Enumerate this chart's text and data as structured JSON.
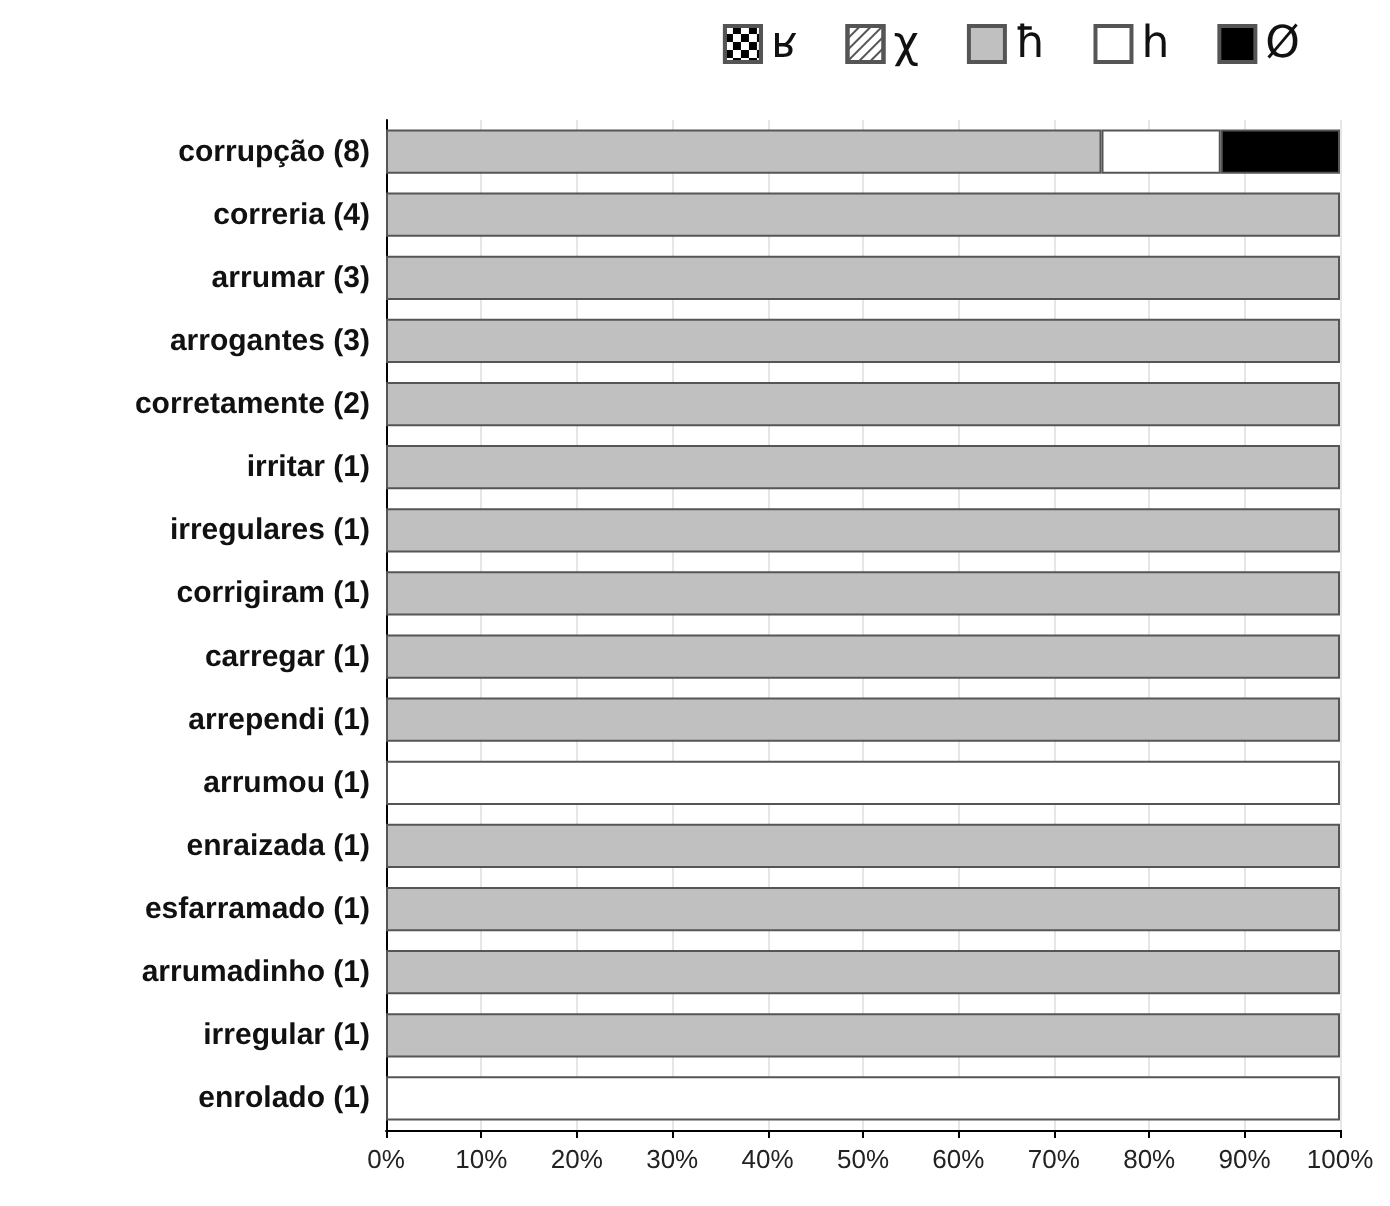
{
  "chart_data": {
    "type": "bar",
    "orientation": "horizontal",
    "stacked": true,
    "legend": "top right",
    "grid": "x",
    "categories": [
      "corrupção (8)",
      "correria (4)",
      "arrumar (3)",
      "arrogantes (3)",
      "corretamente (2)",
      "irritar (1)",
      "irregulares (1)",
      "corrigiram (1)",
      "carregar (1)",
      "arrependi (1)",
      "arrumou (1)",
      "enraizada (1)",
      "esfarramado (1)",
      "arrumadinho (1)",
      "irregular (1)",
      "enrolado (1)"
    ],
    "series": [
      {
        "name": "ʁ",
        "color": "#ffffff",
        "values": [
          0,
          0,
          0,
          0,
          0,
          0,
          0,
          0,
          0,
          0,
          0,
          0,
          0,
          0,
          0,
          0
        ]
      },
      {
        "name": "χ",
        "color": "#ffffff",
        "values": [
          0,
          0,
          0,
          0,
          0,
          0,
          0,
          0,
          0,
          0,
          0,
          0,
          0,
          0,
          0,
          0
        ]
      },
      {
        "name": "ħ",
        "color": "#c0c0c0",
        "values": [
          75,
          100,
          100,
          100,
          100,
          100,
          100,
          100,
          100,
          100,
          0,
          100,
          100,
          100,
          100,
          0
        ]
      },
      {
        "name": "h",
        "color": "#ffffff",
        "values": [
          12.5,
          0,
          0,
          0,
          0,
          0,
          0,
          0,
          0,
          0,
          100,
          0,
          0,
          0,
          0,
          100
        ]
      },
      {
        "name": "Ø",
        "color": "#000000",
        "values": [
          12.5,
          0,
          0,
          0,
          0,
          0,
          0,
          0,
          0,
          0,
          0,
          0,
          0,
          0,
          0,
          0
        ]
      }
    ],
    "xlim": [
      0,
      100
    ],
    "xticks": [
      {
        "value": 0,
        "label": "0%"
      },
      {
        "value": 10,
        "label": "10%"
      },
      {
        "value": 20,
        "label": "20%"
      },
      {
        "value": 30,
        "label": "30%"
      },
      {
        "value": 40,
        "label": "40%"
      },
      {
        "value": 50,
        "label": "50%"
      },
      {
        "value": 60,
        "label": "60%"
      },
      {
        "value": 70,
        "label": "70%"
      },
      {
        "value": 80,
        "label": "80%"
      },
      {
        "value": 90,
        "label": "90%"
      },
      {
        "value": 100,
        "label": "100%"
      }
    ]
  }
}
